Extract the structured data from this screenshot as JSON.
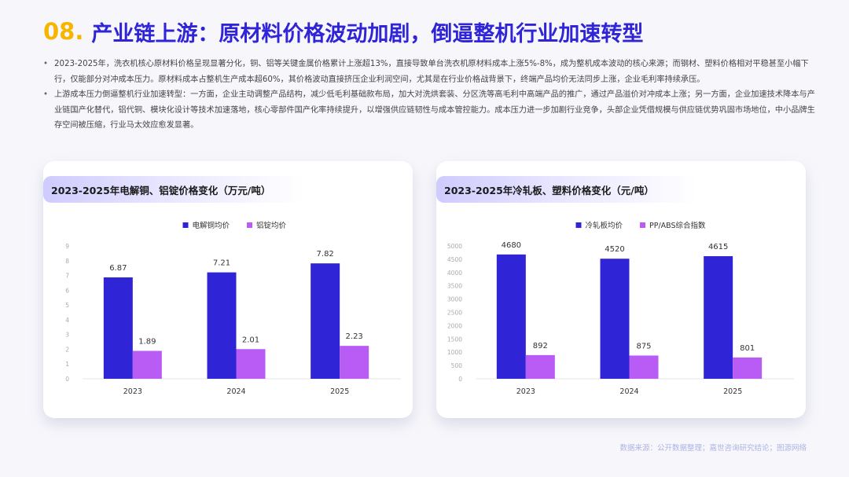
{
  "header": {
    "number": "08.",
    "title": "产业链上游：原材料价格波动加剧，倒逼整机行业加速转型"
  },
  "bullets": [
    "2023-2025年，洗衣机核心原材料价格呈现显著分化，铜、铝等关键金属价格累计上涨超13%，直接导致单台洗衣机原材料成本上涨5%-8%，成为整机成本波动的核心来源；而钢材、塑料价格相对平稳甚至小幅下行，仅能部分对冲成本压力。原材料成本占整机生产成本超60%，其价格波动直接挤压企业利润空间，尤其是在行业价格战背景下，终端产品均价无法同步上涨，企业毛利率持续承压。",
    "上游成本压力倒逼整机行业加速转型：一方面，企业主动调整产品结构，减少低毛利基础款布局，加大对洗烘套装、分区洗等高毛利中高端产品的推广，通过产品溢价对冲成本上涨；另一方面，企业加速技术降本与产业链国产化替代，铝代铜、模块化设计等技术加速落地，核心零部件国产化率持续提升，以增强供应链韧性与成本管控能力。成本压力进一步加剧行业竞争，头部企业凭借规模与供应链优势巩固市场地位，中小品牌生存空间被压缩，行业马太效应愈发显著。"
  ],
  "chart_data": [
    {
      "type": "bar",
      "title": "2023-2025年电解铜、铝锭价格变化（万元/吨）",
      "categories": [
        "2023",
        "2024",
        "2025"
      ],
      "series": [
        {
          "name": "电解铜均价",
          "values": [
            6.87,
            7.21,
            7.82
          ],
          "labels": [
            "6.87",
            "7.21",
            "7.82"
          ],
          "color": "#2f24d6"
        },
        {
          "name": "铝锭均价",
          "values": [
            1.89,
            2.01,
            2.23
          ],
          "labels": [
            "1.89",
            "2.01",
            "2.23"
          ],
          "color": "#b85cf5"
        }
      ],
      "ylim": [
        0,
        9
      ],
      "yticks": [
        "0",
        "1",
        "2",
        "3",
        "4",
        "5",
        "6",
        "7",
        "8",
        "9"
      ],
      "grid": false,
      "legend": "top-center"
    },
    {
      "type": "bar",
      "title": "2023-2025年冷轧板、塑料价格变化（元/吨）",
      "categories": [
        "2023",
        "2024",
        "2025"
      ],
      "series": [
        {
          "name": "冷轧板均价",
          "values": [
            4680,
            4520,
            4615
          ],
          "labels": [
            "4680",
            "4520",
            "4615"
          ],
          "color": "#2f24d6"
        },
        {
          "name": "PP/ABS综合指数",
          "values": [
            892,
            875,
            801
          ],
          "labels": [
            "892",
            "875",
            "801"
          ],
          "color": "#b85cf5"
        }
      ],
      "ylim": [
        0,
        5000
      ],
      "yticks": [
        "0",
        "500",
        "1000",
        "1500",
        "2000",
        "2500",
        "3000",
        "3500",
        "4000",
        "4500",
        "5000"
      ],
      "grid": false,
      "legend": "top-center"
    }
  ],
  "source": "数据来源：公开数据整理；嘉世咨询研究结论；图源网络"
}
